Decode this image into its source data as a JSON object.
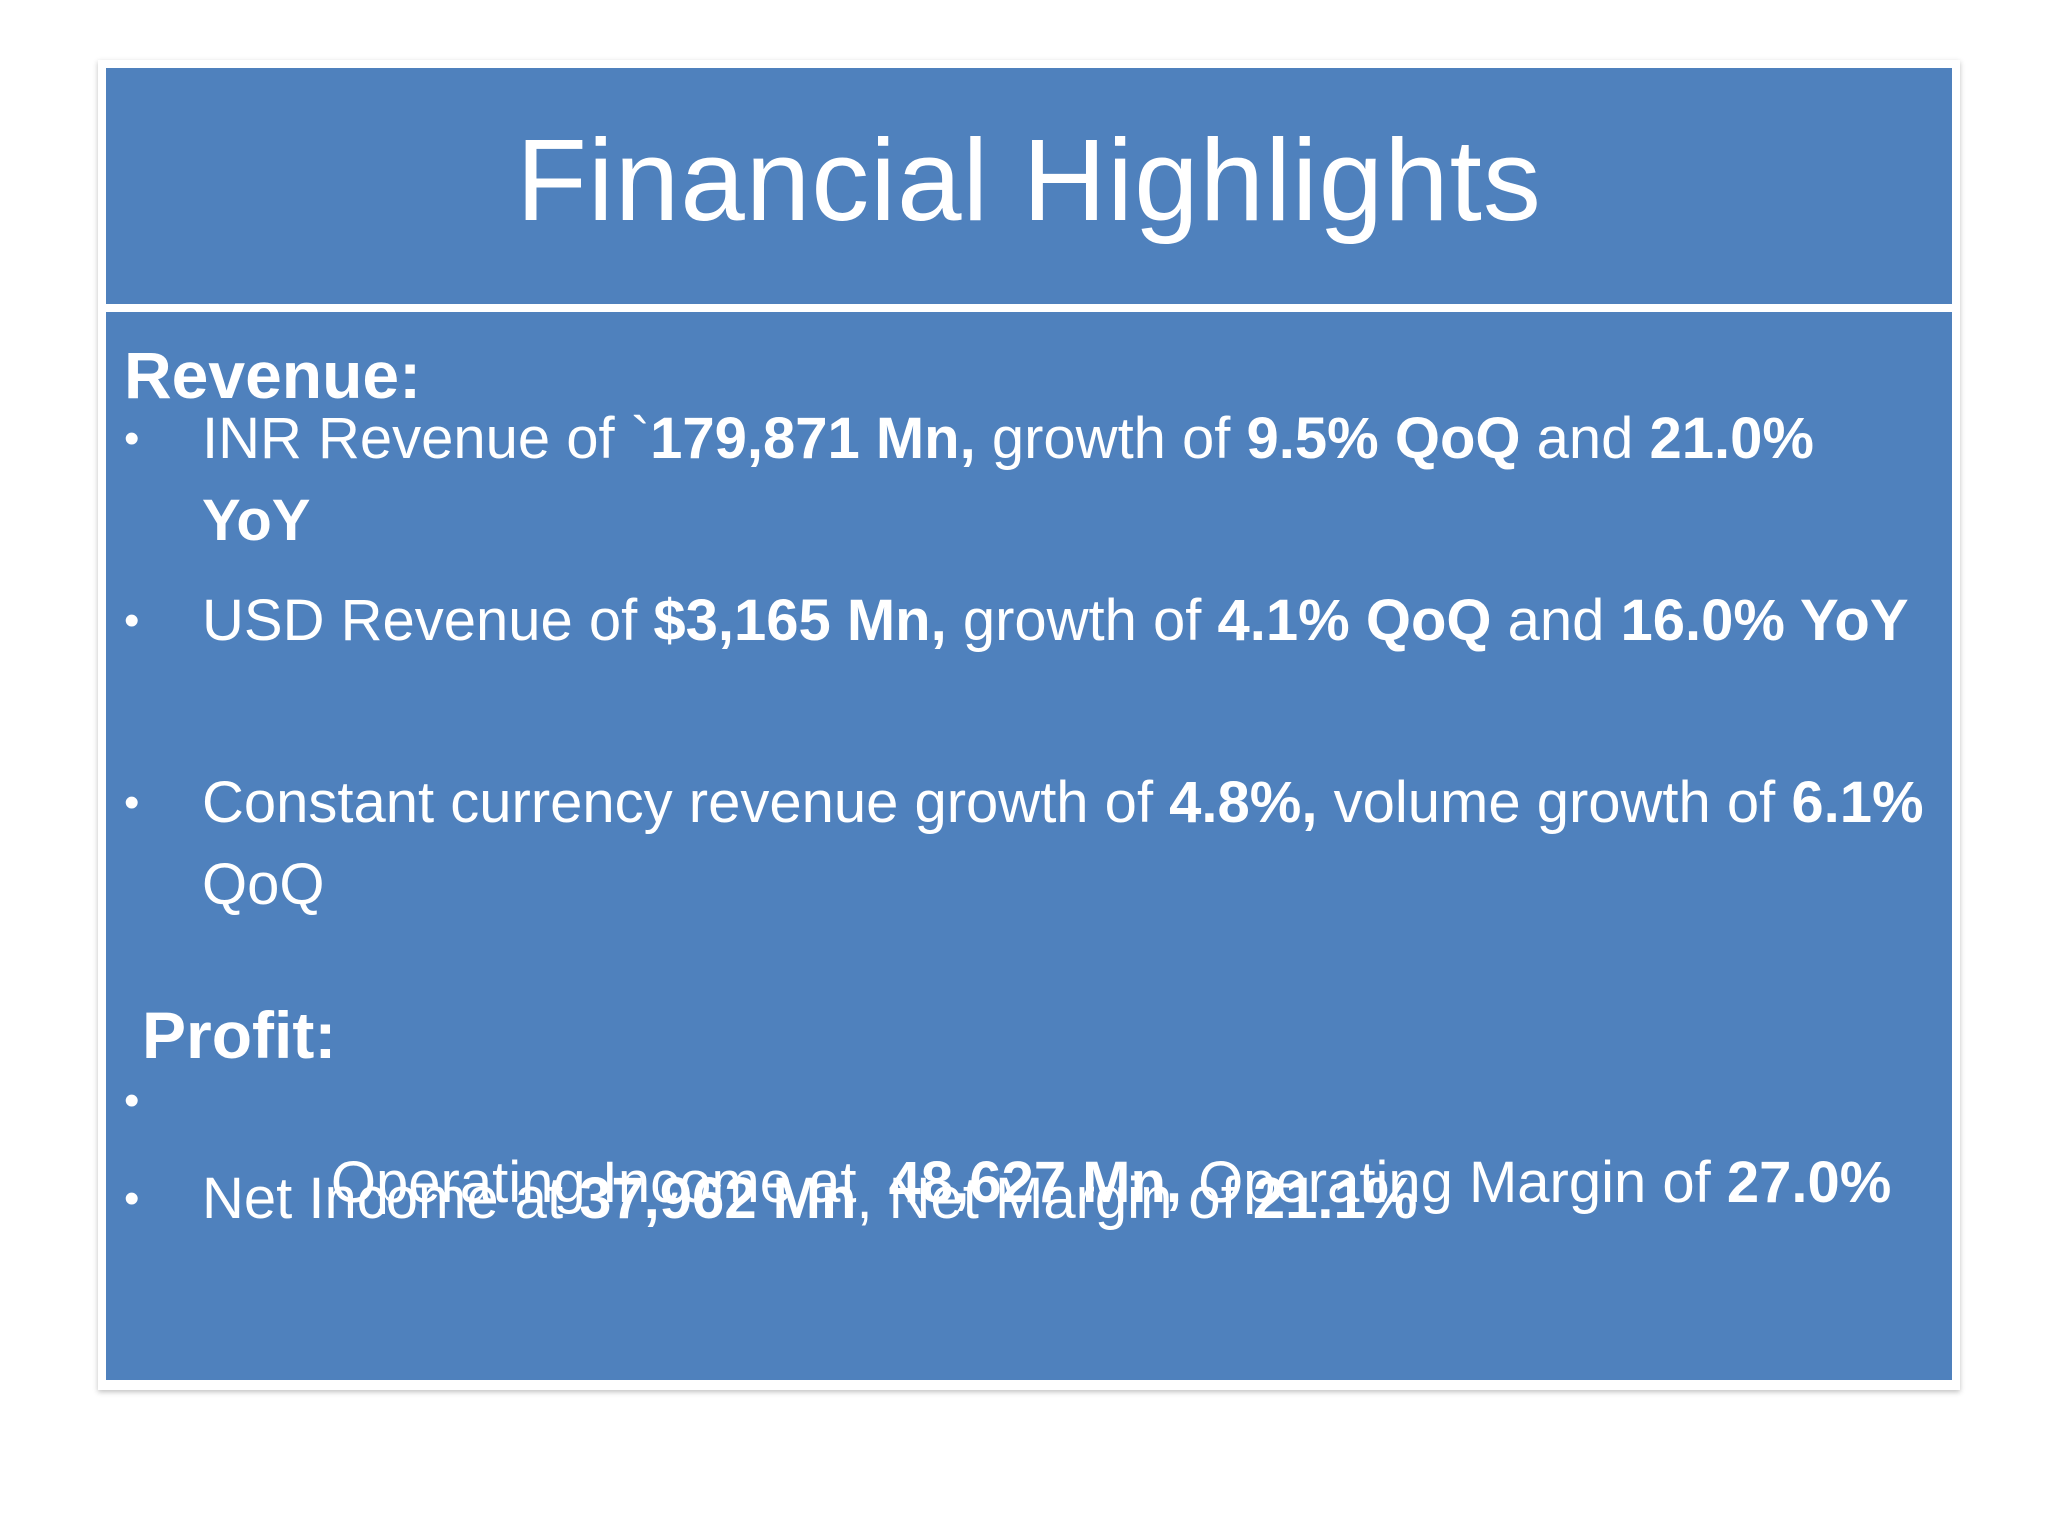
{
  "slide": {
    "title": "Financial Highlights",
    "bullet_glyph": "•",
    "sections": [
      {
        "heading": "Revenue:",
        "bullets": [
          {
            "segments": [
              {
                "text": "INR Revenue of `",
                "bold": false
              },
              {
                "text": "179,871 Mn,",
                "bold": true
              },
              {
                "text": " growth of ",
                "bold": false
              },
              {
                "text": "9.5% QoQ",
                "bold": true
              },
              {
                "text": " and ",
                "bold": false
              },
              {
                "text": "21.0% YoY",
                "bold": true
              }
            ]
          },
          {
            "segments": [
              {
                "text": "USD Revenue of ",
                "bold": false
              },
              {
                "text": "$3,165 Mn,",
                "bold": true
              },
              {
                "text": " growth of ",
                "bold": false
              },
              {
                "text": "4.1% QoQ",
                "bold": true
              },
              {
                "text": " and ",
                "bold": false
              },
              {
                "text": "16.0% YoY",
                "bold": true
              }
            ]
          },
          {
            "segments": [
              {
                "text": "Constant currency revenue growth of ",
                "bold": false
              },
              {
                "text": "4.8%,",
                "bold": true
              },
              {
                "text": " volume growth of ",
                "bold": false
              },
              {
                "text": "6.1%",
                "bold": true
              },
              {
                "text": " QoQ",
                "bold": false
              }
            ]
          }
        ]
      },
      {
        "heading": "Profit:",
        "bullets": [
          {
            "segments": [
              {
                "text": "Operating Income at  ",
                "bold": false
              },
              {
                "text": "48,627 Mn,",
                "bold": true
              },
              {
                "text": " Operating Margin of ",
                "bold": false
              },
              {
                "text": "27.0%",
                "bold": true
              }
            ]
          },
          {
            "segments": [
              {
                "text": "Net Income at ",
                "bold": false
              },
              {
                "text": "37,962 Mn",
                "bold": true
              },
              {
                "text": ", Net Margin of ",
                "bold": false
              },
              {
                "text": "21.1%",
                "bold": true
              }
            ]
          }
        ]
      }
    ]
  }
}
